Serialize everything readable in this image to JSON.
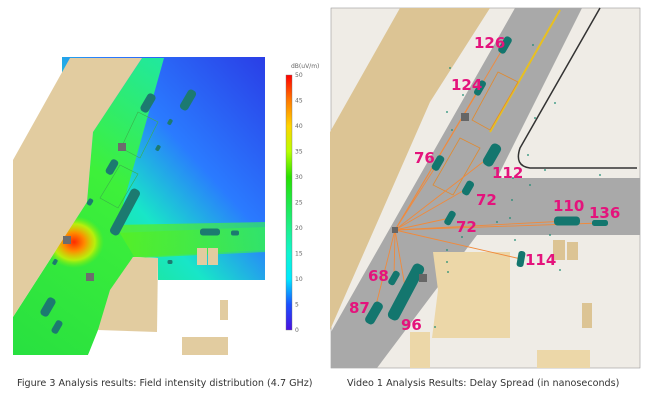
{
  "figure_left": {
    "caption": "Figure 3 Analysis results: Field intensity distribution (4.7 GHz)",
    "colorbar": {
      "unit": "dB(uV/m)",
      "ticks": [
        "50",
        "45",
        "40",
        "35",
        "30",
        "25",
        "20",
        "15",
        "10",
        "5",
        "0"
      ],
      "range": [
        0,
        50
      ],
      "colors": [
        "#ff0000",
        "#ff7a00",
        "#ffd400",
        "#b8ff00",
        "#28e000",
        "#1fe84a",
        "#1ef08c",
        "#10f5d0",
        "#00e8ff",
        "#1a50ff",
        "#4a10e0"
      ]
    }
  },
  "figure_right": {
    "caption": "Video 1 Analysis Results: Delay Spread (in nanoseconds)",
    "delay_labels": [
      "126",
      "124",
      "76",
      "112",
      "72",
      "72",
      "110",
      "136",
      "114",
      "68",
      "87",
      "96"
    ],
    "label_color": "#e4137c",
    "ray_color": "#f08a3c",
    "vehicle_color": "#13766e"
  }
}
